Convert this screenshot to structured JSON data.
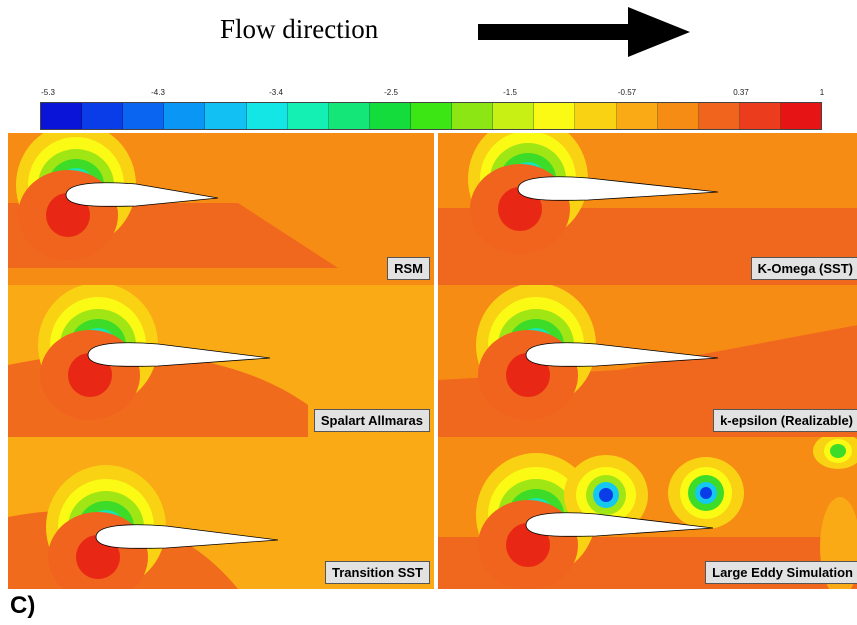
{
  "flow": {
    "title": "Flow direction",
    "arrow_icon": "right-arrow-icon"
  },
  "colorbar": {
    "tick_labels": [
      "-5.3",
      "-4.3",
      "-3.4",
      "-2.5",
      "-1.5",
      "-0.57",
      "0.37",
      "1"
    ],
    "colors": [
      "#0a14d8",
      "#0a3ce8",
      "#0a66f0",
      "#0a96f4",
      "#12c0f4",
      "#14e6e6",
      "#14f0b4",
      "#14e678",
      "#14dc3c",
      "#3ce614",
      "#8ce614",
      "#c8f014",
      "#fafa14",
      "#fad214",
      "#faaa14",
      "#f68c14",
      "#f0641e",
      "#ec3c1e",
      "#e61414"
    ]
  },
  "panels": [
    {
      "label": "RSM"
    },
    {
      "label": "K-Omega (SST)"
    },
    {
      "label": "Spalart Allmaras"
    },
    {
      "label": "k-epsilon (Realizable)"
    },
    {
      "label": "Transition SST"
    },
    {
      "label": "Large Eddy Simulation"
    }
  ],
  "figure_label": "C)"
}
